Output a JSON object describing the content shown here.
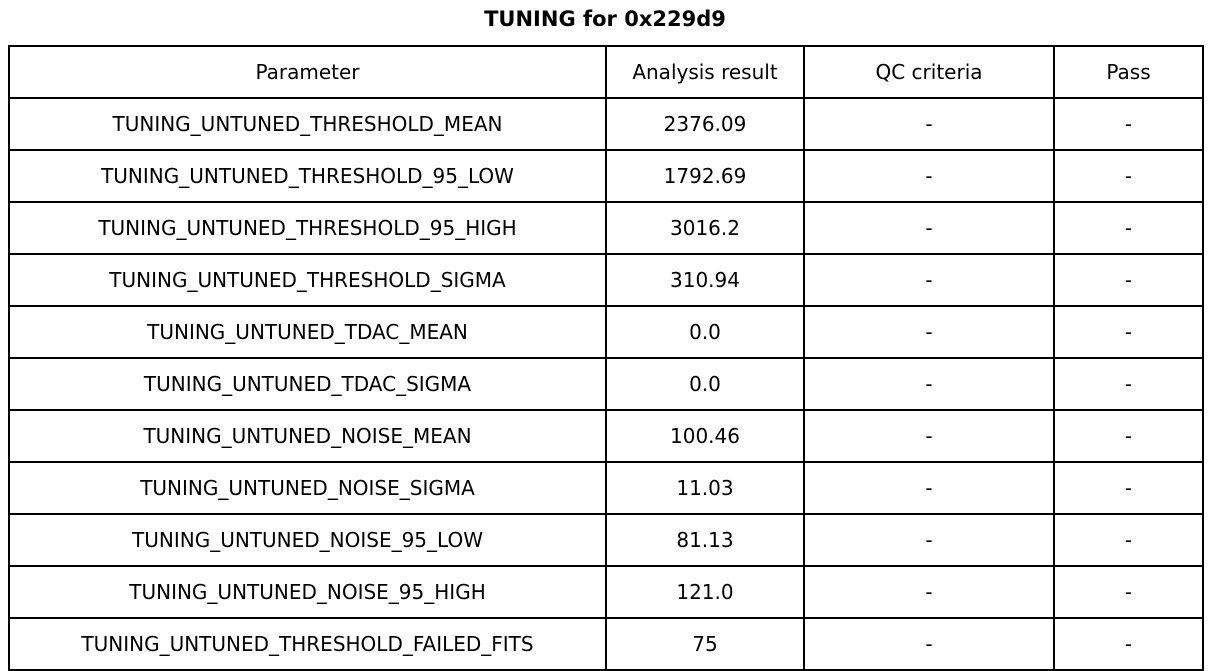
{
  "chart_data": {
    "type": "table",
    "title": "TUNING for 0x229d9",
    "columns": [
      "Parameter",
      "Analysis result",
      "QC criteria",
      "Pass"
    ],
    "rows": [
      [
        "TUNING_UNTUNED_THRESHOLD_MEAN",
        "2376.09",
        "-",
        "-"
      ],
      [
        "TUNING_UNTUNED_THRESHOLD_95_LOW",
        "1792.69",
        "-",
        "-"
      ],
      [
        "TUNING_UNTUNED_THRESHOLD_95_HIGH",
        "3016.2",
        "-",
        "-"
      ],
      [
        "TUNING_UNTUNED_THRESHOLD_SIGMA",
        "310.94",
        "-",
        "-"
      ],
      [
        "TUNING_UNTUNED_TDAC_MEAN",
        "0.0",
        "-",
        "-"
      ],
      [
        "TUNING_UNTUNED_TDAC_SIGMA",
        "0.0",
        "-",
        "-"
      ],
      [
        "TUNING_UNTUNED_NOISE_MEAN",
        "100.46",
        "-",
        "-"
      ],
      [
        "TUNING_UNTUNED_NOISE_SIGMA",
        "11.03",
        "-",
        "-"
      ],
      [
        "TUNING_UNTUNED_NOISE_95_LOW",
        "81.13",
        "-",
        "-"
      ],
      [
        "TUNING_UNTUNED_NOISE_95_HIGH",
        "121.0",
        "-",
        "-"
      ],
      [
        "TUNING_UNTUNED_THRESHOLD_FAILED_FITS",
        "75",
        "-",
        "-"
      ]
    ],
    "layout": {
      "title_position": "top-center",
      "grid": true,
      "legend": false
    }
  },
  "colors": {
    "background": "#ffffff",
    "border": "#000000",
    "text": "#000000"
  }
}
